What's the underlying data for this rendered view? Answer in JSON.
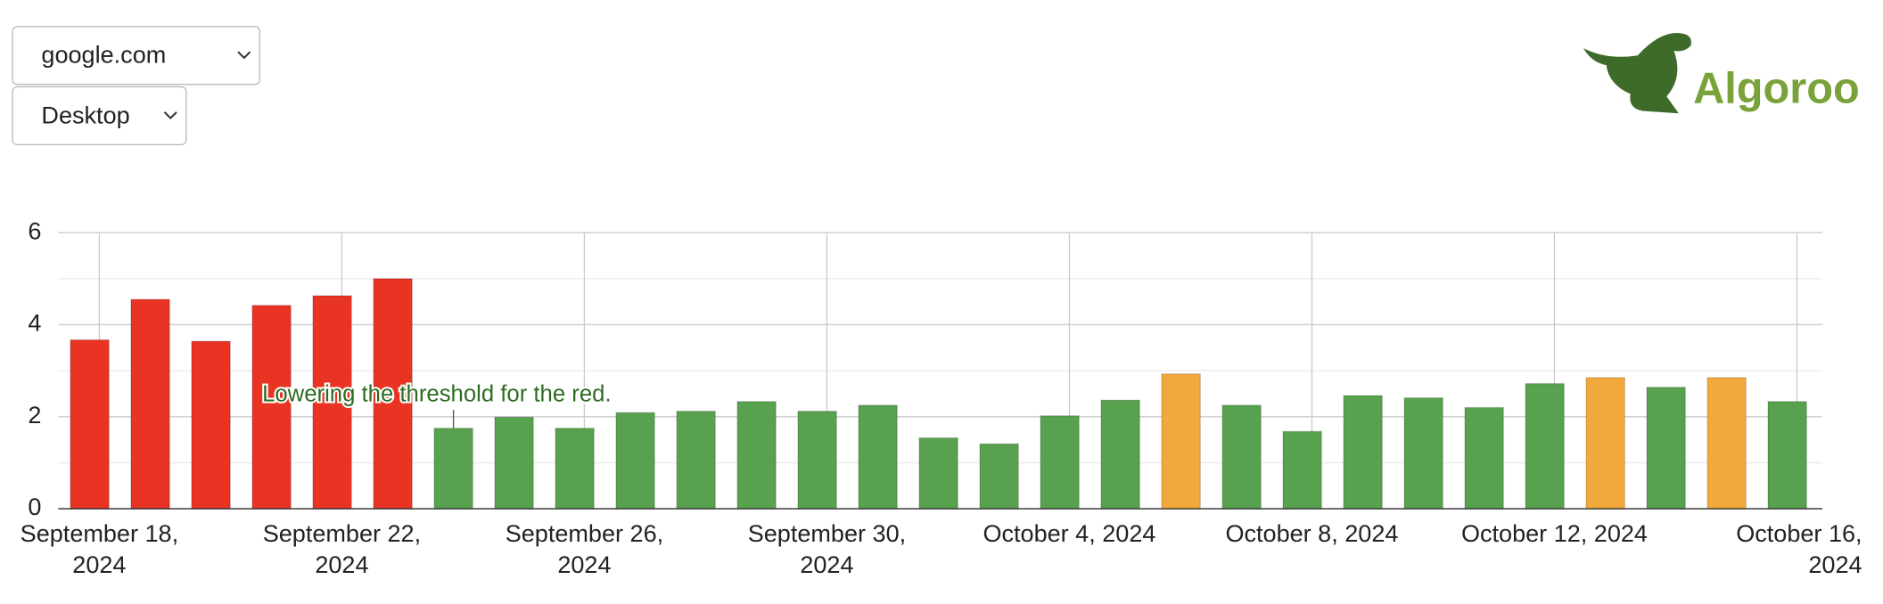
{
  "controls": {
    "site": "google.com",
    "device": "Desktop"
  },
  "logo": {
    "text": "Algoroo"
  },
  "chart_data": {
    "type": "bar",
    "annotation": {
      "text": "Lowering the threshold for the red.",
      "index": 6
    },
    "x": [
      "2024-09-18",
      "2024-09-19",
      "2024-09-20",
      "2024-09-21",
      "2024-09-22",
      "2024-09-23",
      "2024-09-24",
      "2024-09-25",
      "2024-09-26",
      "2024-09-27",
      "2024-09-28",
      "2024-09-29",
      "2024-09-30",
      "2024-10-01",
      "2024-10-02",
      "2024-10-03",
      "2024-10-04",
      "2024-10-05",
      "2024-10-06",
      "2024-10-07",
      "2024-10-08",
      "2024-10-09",
      "2024-10-10",
      "2024-10-11",
      "2024-10-12",
      "2024-10-13",
      "2024-10-14",
      "2024-10-15",
      "2024-10-16"
    ],
    "values": [
      3.67,
      4.55,
      3.64,
      4.42,
      4.63,
      5.0,
      1.75,
      1.99,
      1.75,
      2.09,
      2.12,
      2.33,
      2.12,
      2.25,
      1.54,
      1.41,
      2.02,
      2.36,
      2.93,
      2.25,
      1.68,
      2.46,
      2.41,
      2.2,
      2.72,
      2.85,
      2.64,
      2.85,
      2.33
    ],
    "colors": [
      "#e93323",
      "#e93323",
      "#e93323",
      "#e93323",
      "#e93323",
      "#e93323",
      "#58a14e",
      "#58a14e",
      "#58a14e",
      "#58a14e",
      "#58a14e",
      "#58a14e",
      "#58a14e",
      "#58a14e",
      "#58a14e",
      "#58a14e",
      "#58a14e",
      "#58a14e",
      "#f2a93b",
      "#58a14e",
      "#58a14e",
      "#58a14e",
      "#58a14e",
      "#58a14e",
      "#58a14e",
      "#f2a93b",
      "#58a14e",
      "#f2a93b",
      "#58a14e"
    ],
    "ylim": [
      0,
      6
    ],
    "yticks": [
      0,
      2,
      4,
      6
    ],
    "yminorticks": [
      1,
      3,
      5
    ],
    "grid": true,
    "xticks": [
      {
        "value": "2024-09-18",
        "label": [
          "September 18,",
          "2024"
        ]
      },
      {
        "value": "2024-09-22",
        "label": [
          "September 22,",
          "2024"
        ]
      },
      {
        "value": "2024-09-26",
        "label": [
          "September 26,",
          "2024"
        ]
      },
      {
        "value": "2024-09-30",
        "label": [
          "September 30,",
          "2024"
        ]
      },
      {
        "value": "2024-10-04",
        "label": [
          "October 4, 2024"
        ]
      },
      {
        "value": "2024-10-08",
        "label": [
          "October 8, 2024"
        ]
      },
      {
        "value": "2024-10-12",
        "label": [
          "October 12, 2024"
        ]
      },
      {
        "value": "2024-10-16",
        "label": [
          "October 16,",
          "2024"
        ]
      }
    ]
  }
}
